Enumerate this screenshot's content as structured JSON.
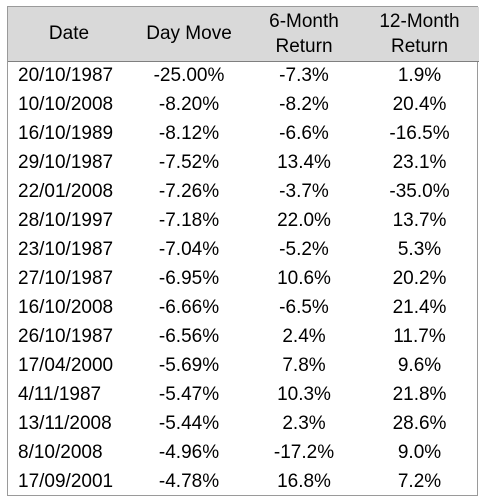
{
  "headers": [
    {
      "line1": "Date",
      "line2": ""
    },
    {
      "line1": "Day Move",
      "line2": ""
    },
    {
      "line1": "6-Month",
      "line2": "Return"
    },
    {
      "line1": "12-Month",
      "line2": "Return"
    }
  ],
  "rows": [
    {
      "date": "20/10/1987",
      "day_move": "-25.00%",
      "ret_6m": "-7.3%",
      "ret_12m": "1.9%"
    },
    {
      "date": "10/10/2008",
      "day_move": "-8.20%",
      "ret_6m": "-8.2%",
      "ret_12m": "20.4%"
    },
    {
      "date": "16/10/1989",
      "day_move": "-8.12%",
      "ret_6m": "-6.6%",
      "ret_12m": "-16.5%"
    },
    {
      "date": "29/10/1987",
      "day_move": "-7.52%",
      "ret_6m": "13.4%",
      "ret_12m": "23.1%"
    },
    {
      "date": "22/01/2008",
      "day_move": "-7.26%",
      "ret_6m": "-3.7%",
      "ret_12m": "-35.0%"
    },
    {
      "date": "28/10/1997",
      "day_move": "-7.18%",
      "ret_6m": "22.0%",
      "ret_12m": "13.7%"
    },
    {
      "date": "23/10/1987",
      "day_move": "-7.04%",
      "ret_6m": "-5.2%",
      "ret_12m": "5.3%"
    },
    {
      "date": "27/10/1987",
      "day_move": "-6.95%",
      "ret_6m": "10.6%",
      "ret_12m": "20.2%"
    },
    {
      "date": "16/10/2008",
      "day_move": "-6.66%",
      "ret_6m": "-6.5%",
      "ret_12m": "21.4%"
    },
    {
      "date": "26/10/1987",
      "day_move": "-6.56%",
      "ret_6m": "2.4%",
      "ret_12m": "11.7%"
    },
    {
      "date": "17/04/2000",
      "day_move": "-5.69%",
      "ret_6m": "7.8%",
      "ret_12m": "9.6%"
    },
    {
      "date": "4/11/1987",
      "day_move": "-5.47%",
      "ret_6m": "10.3%",
      "ret_12m": "21.8%"
    },
    {
      "date": "13/11/2008",
      "day_move": "-5.44%",
      "ret_6m": "2.3%",
      "ret_12m": "28.6%"
    },
    {
      "date": "8/10/2008",
      "day_move": "-4.96%",
      "ret_6m": "-17.2%",
      "ret_12m": "9.0%"
    },
    {
      "date": "17/09/2001",
      "day_move": "-4.78%",
      "ret_6m": "16.8%",
      "ret_12m": "7.2%"
    }
  ]
}
